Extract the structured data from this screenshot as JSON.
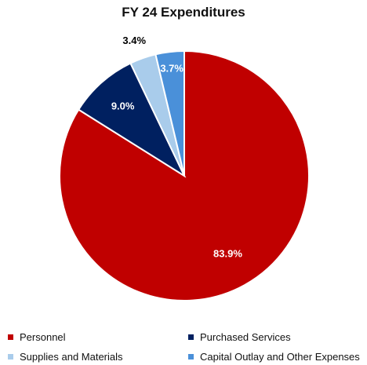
{
  "chart_data": {
    "type": "pie",
    "title": "FY 24 Expenditures",
    "categories": [
      "Personnel",
      "Purchased Services",
      "Supplies and Materials",
      "Capital Outlay and Other Expenses"
    ],
    "values": [
      83.9,
      9.0,
      3.4,
      3.7
    ],
    "data_labels": [
      "83.9%",
      "9.0%",
      "3.4%",
      "3.7%"
    ],
    "colors": [
      "#C00000",
      "#002060",
      "#A9CCEB",
      "#4A90D9"
    ],
    "start": "12 o'clock, clockwise",
    "legend_position": "bottom"
  }
}
